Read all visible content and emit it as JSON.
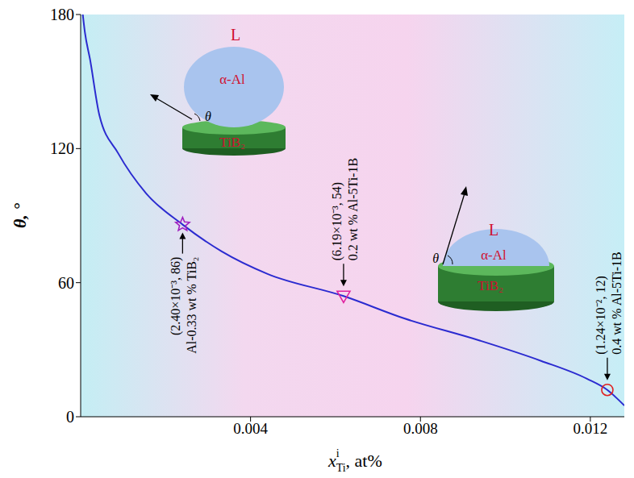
{
  "chart_data": {
    "type": "line",
    "y_label": "θ, °",
    "x_label": {
      "text": "x",
      "sub": "Ti",
      "sup": "i",
      "unit": ", at%"
    },
    "xlim": [
      0,
      0.0128
    ],
    "xticks": [
      0.004,
      0.008,
      0.012
    ],
    "ylim": [
      0,
      180
    ],
    "yticks": [
      0,
      60,
      120,
      180
    ],
    "grid": false,
    "color": "#2b2bd0",
    "x": [
      5e-05,
      0.0001,
      0.00022,
      0.00044,
      0.00088,
      0.00154,
      0.0024,
      0.00332,
      0.00439,
      0.00619,
      0.00762,
      0.00941,
      0.01084,
      0.01192,
      0.0124,
      0.0128
    ],
    "values": [
      180,
      172,
      160,
      135,
      118,
      100,
      86,
      74,
      64,
      54,
      44,
      34,
      25,
      17,
      12,
      5
    ],
    "points": [
      {
        "x": 0.0024,
        "y": 86,
        "label": "(2.40×10⁻³, 86)",
        "annotation": "Al-0.33 wt % TiB₂",
        "marker": "star",
        "color": "#a020c0"
      },
      {
        "x": 0.00619,
        "y": 54,
        "label": "(6.19×10⁻³, 54)",
        "annotation": "0.2 wt % Al-5Ti-1B",
        "marker": "triangle",
        "color": "#e020a0"
      },
      {
        "x": 0.0124,
        "y": 12,
        "label": "(1.24×10⁻², 12)",
        "annotation": "0.4 wt % Al-5Ti-1B",
        "marker": "circle",
        "color": "#e02020"
      }
    ],
    "insets": [
      {
        "liquid": "L",
        "solid": "α-Al",
        "substrate": "TiB₂",
        "angle": "θ"
      },
      {
        "liquid": "L",
        "solid": "α-Al",
        "substrate": "TiB₂",
        "angle": "θ"
      }
    ]
  }
}
